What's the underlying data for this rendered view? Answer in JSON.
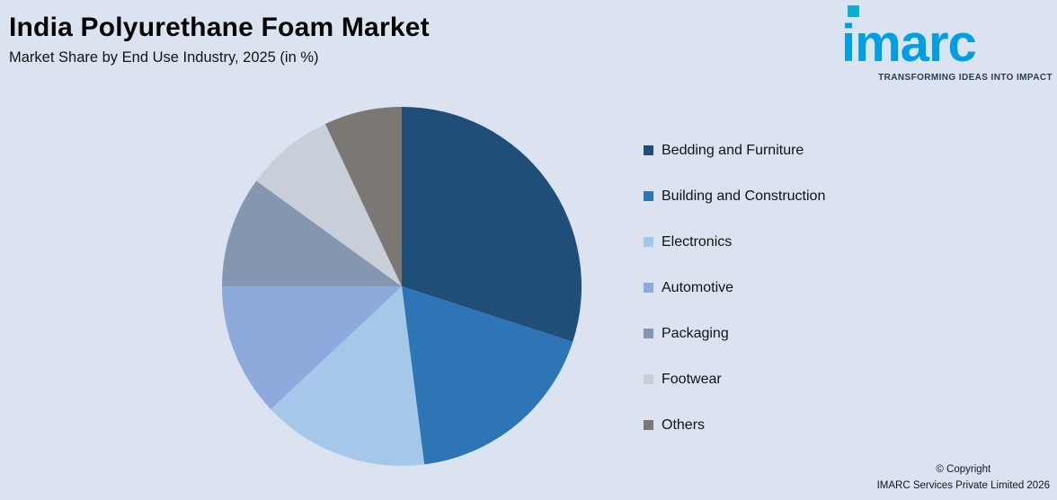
{
  "header": {
    "title": "India Polyurethane Foam Market",
    "subtitle": "Market Share by End Use Industry, 2025 (in %)"
  },
  "branding": {
    "logo_text": "imarc",
    "tagline": "TRANSFORMING IDEAS INTO IMPACT",
    "logo_color": "#009fe3",
    "logo_dot_color": "#0cb0d0"
  },
  "footer": {
    "copyright_line1": "© Copyright",
    "copyright_line2": "IMARC Services Private Limited 2026"
  },
  "colors": {
    "background": "#dbe3f1"
  },
  "chart_data": {
    "type": "pie",
    "title": "India Polyurethane Foam Market",
    "subtitle": "Market Share by End Use Industry, 2025 (in %)",
    "unit": "%",
    "legend_position": "right",
    "values_labeled_on_chart": false,
    "start_angle_deg": 0,
    "direction": "clockwise",
    "series": [
      {
        "key": "bedding-and-furniture",
        "label": "Bedding and Furniture",
        "value": 30,
        "color": "#1f4e78"
      },
      {
        "key": "building-and-construction",
        "label": "Building and Construction",
        "value": 18,
        "color": "#2e75b5"
      },
      {
        "key": "electronics",
        "label": "Electronics",
        "value": 15,
        "color": "#a5c8e9"
      },
      {
        "key": "automotive",
        "label": "Automotive",
        "value": 12,
        "color": "#8ea9db"
      },
      {
        "key": "packaging",
        "label": "Packaging",
        "value": 10,
        "color": "#8496b0"
      },
      {
        "key": "footwear",
        "label": "Footwear",
        "value": 8,
        "color": "#c9cfd8"
      },
      {
        "key": "others",
        "label": "Others",
        "value": 7,
        "color": "#7b7873"
      }
    ]
  }
}
